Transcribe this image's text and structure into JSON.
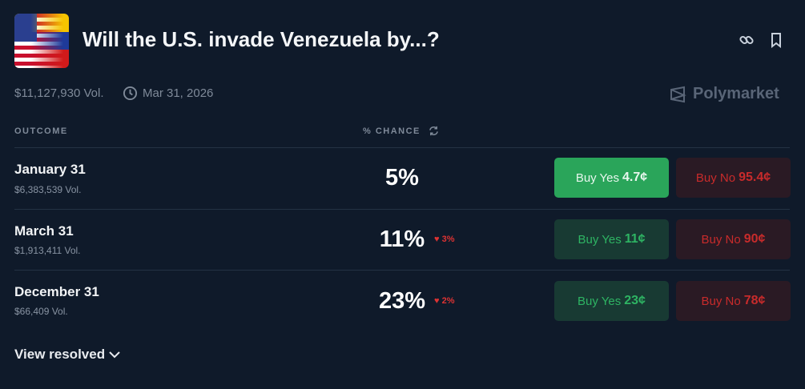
{
  "header": {
    "title": "Will the U.S. invade Venezuela by...?",
    "icons": [
      "link-icon",
      "bookmark-icon"
    ]
  },
  "meta": {
    "volume": "$11,127,930 Vol.",
    "end_date": "Mar 31, 2026",
    "brand": "Polymarket"
  },
  "table": {
    "col_outcome": "OUTCOME",
    "col_chance": "% CHANCE",
    "rows": [
      {
        "name": "January 31",
        "volume": "$6,383,539 Vol.",
        "chance": "5%",
        "delta": "",
        "yes_label": "Buy Yes",
        "yes_price": "4.7¢",
        "no_label": "Buy No",
        "no_price": "95.4¢"
      },
      {
        "name": "March 31",
        "volume": "$1,913,411 Vol.",
        "chance": "11%",
        "delta": "3%",
        "yes_label": "Buy Yes",
        "yes_price": "11¢",
        "no_label": "Buy No",
        "no_price": "90¢"
      },
      {
        "name": "December 31",
        "volume": "$66,409 Vol.",
        "chance": "23%",
        "delta": "2%",
        "yes_label": "Buy Yes",
        "yes_price": "23¢",
        "no_label": "Buy No",
        "no_price": "78¢"
      }
    ]
  },
  "footer": {
    "view_resolved": "View resolved"
  },
  "colors": {
    "background": "#0f1a2a",
    "yes": "#2aa55a",
    "no": "#c82b2b"
  }
}
